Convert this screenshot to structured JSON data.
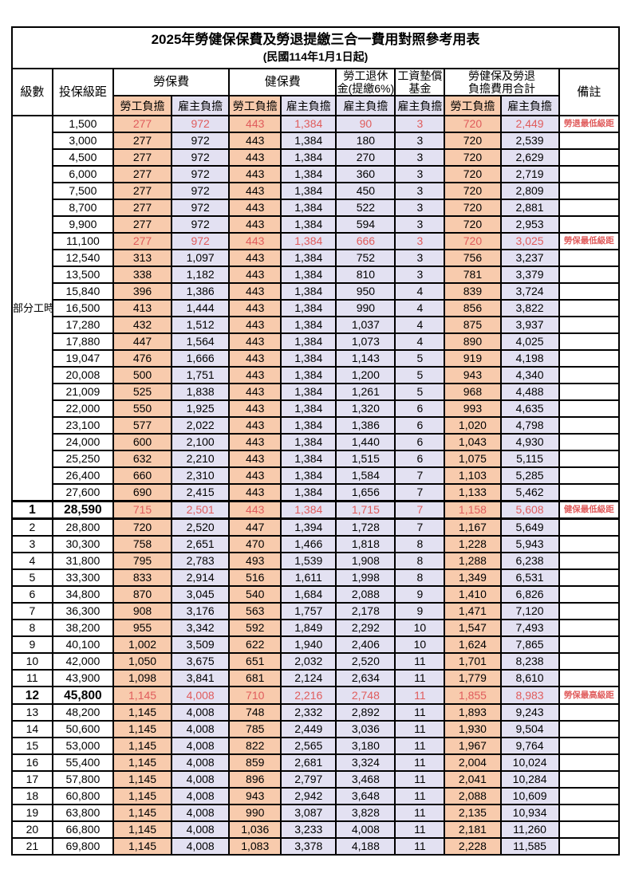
{
  "title": {
    "main": "2025年勞健保保費及勞退提繳三合一費用對照參考用表",
    "subtitle": "(民國114年1月1日起)"
  },
  "colors": {
    "employee_bg": "#F8CBAD",
    "employer_bg": "#E3E1F2",
    "highlight_text": "#E05C5C"
  },
  "columns": {
    "level": "級數",
    "bracket": "投保級距",
    "labor_insurance": "勞保費",
    "health_insurance": "健保費",
    "pension_line1": "勞工退休",
    "pension_line2": "金(提繳6%)",
    "wage_fund_line1": "工資墊償",
    "wage_fund_line2": "基金",
    "total_line1": "勞健保及勞退",
    "total_line2": "負擔費用合計",
    "remark": "備註",
    "employee_burden": "勞工負擔",
    "employer_burden": "雇主負擔"
  },
  "part_time": {
    "label": "部分工時",
    "row_count": 23
  },
  "value_column_classes": [
    "emp",
    "er",
    "emp",
    "er",
    "er",
    "er",
    "emp",
    "er"
  ],
  "rows": [
    {
      "level": "",
      "bracket": "1,500",
      "values": [
        "277",
        "972",
        "443",
        "1,384",
        "90",
        "3",
        "720",
        "2,449"
      ],
      "remark": "勞退最低級距",
      "red": true,
      "bold": false
    },
    {
      "level": "",
      "bracket": "3,000",
      "values": [
        "277",
        "972",
        "443",
        "1,384",
        "180",
        "3",
        "720",
        "2,539"
      ],
      "remark": "",
      "red": false,
      "bold": false
    },
    {
      "level": "",
      "bracket": "4,500",
      "values": [
        "277",
        "972",
        "443",
        "1,384",
        "270",
        "3",
        "720",
        "2,629"
      ],
      "remark": "",
      "red": false,
      "bold": false
    },
    {
      "level": "",
      "bracket": "6,000",
      "values": [
        "277",
        "972",
        "443",
        "1,384",
        "360",
        "3",
        "720",
        "2,719"
      ],
      "remark": "",
      "red": false,
      "bold": false
    },
    {
      "level": "",
      "bracket": "7,500",
      "values": [
        "277",
        "972",
        "443",
        "1,384",
        "450",
        "3",
        "720",
        "2,809"
      ],
      "remark": "",
      "red": false,
      "bold": false
    },
    {
      "level": "",
      "bracket": "8,700",
      "values": [
        "277",
        "972",
        "443",
        "1,384",
        "522",
        "3",
        "720",
        "2,881"
      ],
      "remark": "",
      "red": false,
      "bold": false
    },
    {
      "level": "",
      "bracket": "9,900",
      "values": [
        "277",
        "972",
        "443",
        "1,384",
        "594",
        "3",
        "720",
        "2,953"
      ],
      "remark": "",
      "red": false,
      "bold": false
    },
    {
      "level": "",
      "bracket": "11,100",
      "values": [
        "277",
        "972",
        "443",
        "1,384",
        "666",
        "3",
        "720",
        "3,025"
      ],
      "remark": "勞保最低級距",
      "red": true,
      "bold": false
    },
    {
      "level": "",
      "bracket": "12,540",
      "values": [
        "313",
        "1,097",
        "443",
        "1,384",
        "752",
        "3",
        "756",
        "3,237"
      ],
      "remark": "",
      "red": false,
      "bold": false
    },
    {
      "level": "",
      "bracket": "13,500",
      "values": [
        "338",
        "1,182",
        "443",
        "1,384",
        "810",
        "3",
        "781",
        "3,379"
      ],
      "remark": "",
      "red": false,
      "bold": false
    },
    {
      "level": "",
      "bracket": "15,840",
      "values": [
        "396",
        "1,386",
        "443",
        "1,384",
        "950",
        "4",
        "839",
        "3,724"
      ],
      "remark": "",
      "red": false,
      "bold": false
    },
    {
      "level": "",
      "bracket": "16,500",
      "values": [
        "413",
        "1,444",
        "443",
        "1,384",
        "990",
        "4",
        "856",
        "3,822"
      ],
      "remark": "",
      "red": false,
      "bold": false
    },
    {
      "level": "",
      "bracket": "17,280",
      "values": [
        "432",
        "1,512",
        "443",
        "1,384",
        "1,037",
        "4",
        "875",
        "3,937"
      ],
      "remark": "",
      "red": false,
      "bold": false
    },
    {
      "level": "",
      "bracket": "17,880",
      "values": [
        "447",
        "1,564",
        "443",
        "1,384",
        "1,073",
        "4",
        "890",
        "4,025"
      ],
      "remark": "",
      "red": false,
      "bold": false
    },
    {
      "level": "",
      "bracket": "19,047",
      "values": [
        "476",
        "1,666",
        "443",
        "1,384",
        "1,143",
        "5",
        "919",
        "4,198"
      ],
      "remark": "",
      "red": false,
      "bold": false
    },
    {
      "level": "",
      "bracket": "20,008",
      "values": [
        "500",
        "1,751",
        "443",
        "1,384",
        "1,200",
        "5",
        "943",
        "4,340"
      ],
      "remark": "",
      "red": false,
      "bold": false
    },
    {
      "level": "",
      "bracket": "21,009",
      "values": [
        "525",
        "1,838",
        "443",
        "1,384",
        "1,261",
        "5",
        "968",
        "4,488"
      ],
      "remark": "",
      "red": false,
      "bold": false
    },
    {
      "level": "",
      "bracket": "22,000",
      "values": [
        "550",
        "1,925",
        "443",
        "1,384",
        "1,320",
        "6",
        "993",
        "4,635"
      ],
      "remark": "",
      "red": false,
      "bold": false
    },
    {
      "level": "",
      "bracket": "23,100",
      "values": [
        "577",
        "2,022",
        "443",
        "1,384",
        "1,386",
        "6",
        "1,020",
        "4,798"
      ],
      "remark": "",
      "red": false,
      "bold": false
    },
    {
      "level": "",
      "bracket": "24,000",
      "values": [
        "600",
        "2,100",
        "443",
        "1,384",
        "1,440",
        "6",
        "1,043",
        "4,930"
      ],
      "remark": "",
      "red": false,
      "bold": false
    },
    {
      "level": "",
      "bracket": "25,250",
      "values": [
        "632",
        "2,210",
        "443",
        "1,384",
        "1,515",
        "6",
        "1,075",
        "5,115"
      ],
      "remark": "",
      "red": false,
      "bold": false
    },
    {
      "level": "",
      "bracket": "26,400",
      "values": [
        "660",
        "2,310",
        "443",
        "1,384",
        "1,584",
        "7",
        "1,103",
        "5,285"
      ],
      "remark": "",
      "red": false,
      "bold": false
    },
    {
      "level": "",
      "bracket": "27,600",
      "values": [
        "690",
        "2,415",
        "443",
        "1,384",
        "1,656",
        "7",
        "1,133",
        "5,462"
      ],
      "remark": "",
      "red": false,
      "bold": false
    },
    {
      "level": "1",
      "bracket": "28,590",
      "values": [
        "715",
        "2,501",
        "443",
        "1,384",
        "1,715",
        "7",
        "1,158",
        "5,608"
      ],
      "remark": "健保最低級距",
      "red": true,
      "bold": true
    },
    {
      "level": "2",
      "bracket": "28,800",
      "values": [
        "720",
        "2,520",
        "447",
        "1,394",
        "1,728",
        "7",
        "1,167",
        "5,649"
      ],
      "remark": "",
      "red": false,
      "bold": false
    },
    {
      "level": "3",
      "bracket": "30,300",
      "values": [
        "758",
        "2,651",
        "470",
        "1,466",
        "1,818",
        "8",
        "1,228",
        "5,943"
      ],
      "remark": "",
      "red": false,
      "bold": false
    },
    {
      "level": "4",
      "bracket": "31,800",
      "values": [
        "795",
        "2,783",
        "493",
        "1,539",
        "1,908",
        "8",
        "1,288",
        "6,238"
      ],
      "remark": "",
      "red": false,
      "bold": false
    },
    {
      "level": "5",
      "bracket": "33,300",
      "values": [
        "833",
        "2,914",
        "516",
        "1,611",
        "1,998",
        "8",
        "1,349",
        "6,531"
      ],
      "remark": "",
      "red": false,
      "bold": false
    },
    {
      "level": "6",
      "bracket": "34,800",
      "values": [
        "870",
        "3,045",
        "540",
        "1,684",
        "2,088",
        "9",
        "1,410",
        "6,826"
      ],
      "remark": "",
      "red": false,
      "bold": false
    },
    {
      "level": "7",
      "bracket": "36,300",
      "values": [
        "908",
        "3,176",
        "563",
        "1,757",
        "2,178",
        "9",
        "1,471",
        "7,120"
      ],
      "remark": "",
      "red": false,
      "bold": false
    },
    {
      "level": "8",
      "bracket": "38,200",
      "values": [
        "955",
        "3,342",
        "592",
        "1,849",
        "2,292",
        "10",
        "1,547",
        "7,493"
      ],
      "remark": "",
      "red": false,
      "bold": false
    },
    {
      "level": "9",
      "bracket": "40,100",
      "values": [
        "1,002",
        "3,509",
        "622",
        "1,940",
        "2,406",
        "10",
        "1,624",
        "7,865"
      ],
      "remark": "",
      "red": false,
      "bold": false
    },
    {
      "level": "10",
      "bracket": "42,000",
      "values": [
        "1,050",
        "3,675",
        "651",
        "2,032",
        "2,520",
        "11",
        "1,701",
        "8,238"
      ],
      "remark": "",
      "red": false,
      "bold": false
    },
    {
      "level": "11",
      "bracket": "43,900",
      "values": [
        "1,098",
        "3,841",
        "681",
        "2,124",
        "2,634",
        "11",
        "1,779",
        "8,610"
      ],
      "remark": "",
      "red": false,
      "bold": false
    },
    {
      "level": "12",
      "bracket": "45,800",
      "values": [
        "1,145",
        "4,008",
        "710",
        "2,216",
        "2,748",
        "11",
        "1,855",
        "8,983"
      ],
      "remark": "勞保最高級距",
      "red": true,
      "bold": true
    },
    {
      "level": "13",
      "bracket": "48,200",
      "values": [
        "1,145",
        "4,008",
        "748",
        "2,332",
        "2,892",
        "11",
        "1,893",
        "9,243"
      ],
      "remark": "",
      "red": false,
      "bold": false
    },
    {
      "level": "14",
      "bracket": "50,600",
      "values": [
        "1,145",
        "4,008",
        "785",
        "2,449",
        "3,036",
        "11",
        "1,930",
        "9,504"
      ],
      "remark": "",
      "red": false,
      "bold": false
    },
    {
      "level": "15",
      "bracket": "53,000",
      "values": [
        "1,145",
        "4,008",
        "822",
        "2,565",
        "3,180",
        "11",
        "1,967",
        "9,764"
      ],
      "remark": "",
      "red": false,
      "bold": false
    },
    {
      "level": "16",
      "bracket": "55,400",
      "values": [
        "1,145",
        "4,008",
        "859",
        "2,681",
        "3,324",
        "11",
        "2,004",
        "10,024"
      ],
      "remark": "",
      "red": false,
      "bold": false
    },
    {
      "level": "17",
      "bracket": "57,800",
      "values": [
        "1,145",
        "4,008",
        "896",
        "2,797",
        "3,468",
        "11",
        "2,041",
        "10,284"
      ],
      "remark": "",
      "red": false,
      "bold": false
    },
    {
      "level": "18",
      "bracket": "60,800",
      "values": [
        "1,145",
        "4,008",
        "943",
        "2,942",
        "3,648",
        "11",
        "2,088",
        "10,609"
      ],
      "remark": "",
      "red": false,
      "bold": false
    },
    {
      "level": "19",
      "bracket": "63,800",
      "values": [
        "1,145",
        "4,008",
        "990",
        "3,087",
        "3,828",
        "11",
        "2,135",
        "10,934"
      ],
      "remark": "",
      "red": false,
      "bold": false
    },
    {
      "level": "20",
      "bracket": "66,800",
      "values": [
        "1,145",
        "4,008",
        "1,036",
        "3,233",
        "4,008",
        "11",
        "2,181",
        "11,260"
      ],
      "remark": "",
      "red": false,
      "bold": false
    },
    {
      "level": "21",
      "bracket": "69,800",
      "values": [
        "1,145",
        "4,008",
        "1,083",
        "3,378",
        "4,188",
        "11",
        "2,228",
        "11,585"
      ],
      "remark": "",
      "red": false,
      "bold": false
    }
  ]
}
